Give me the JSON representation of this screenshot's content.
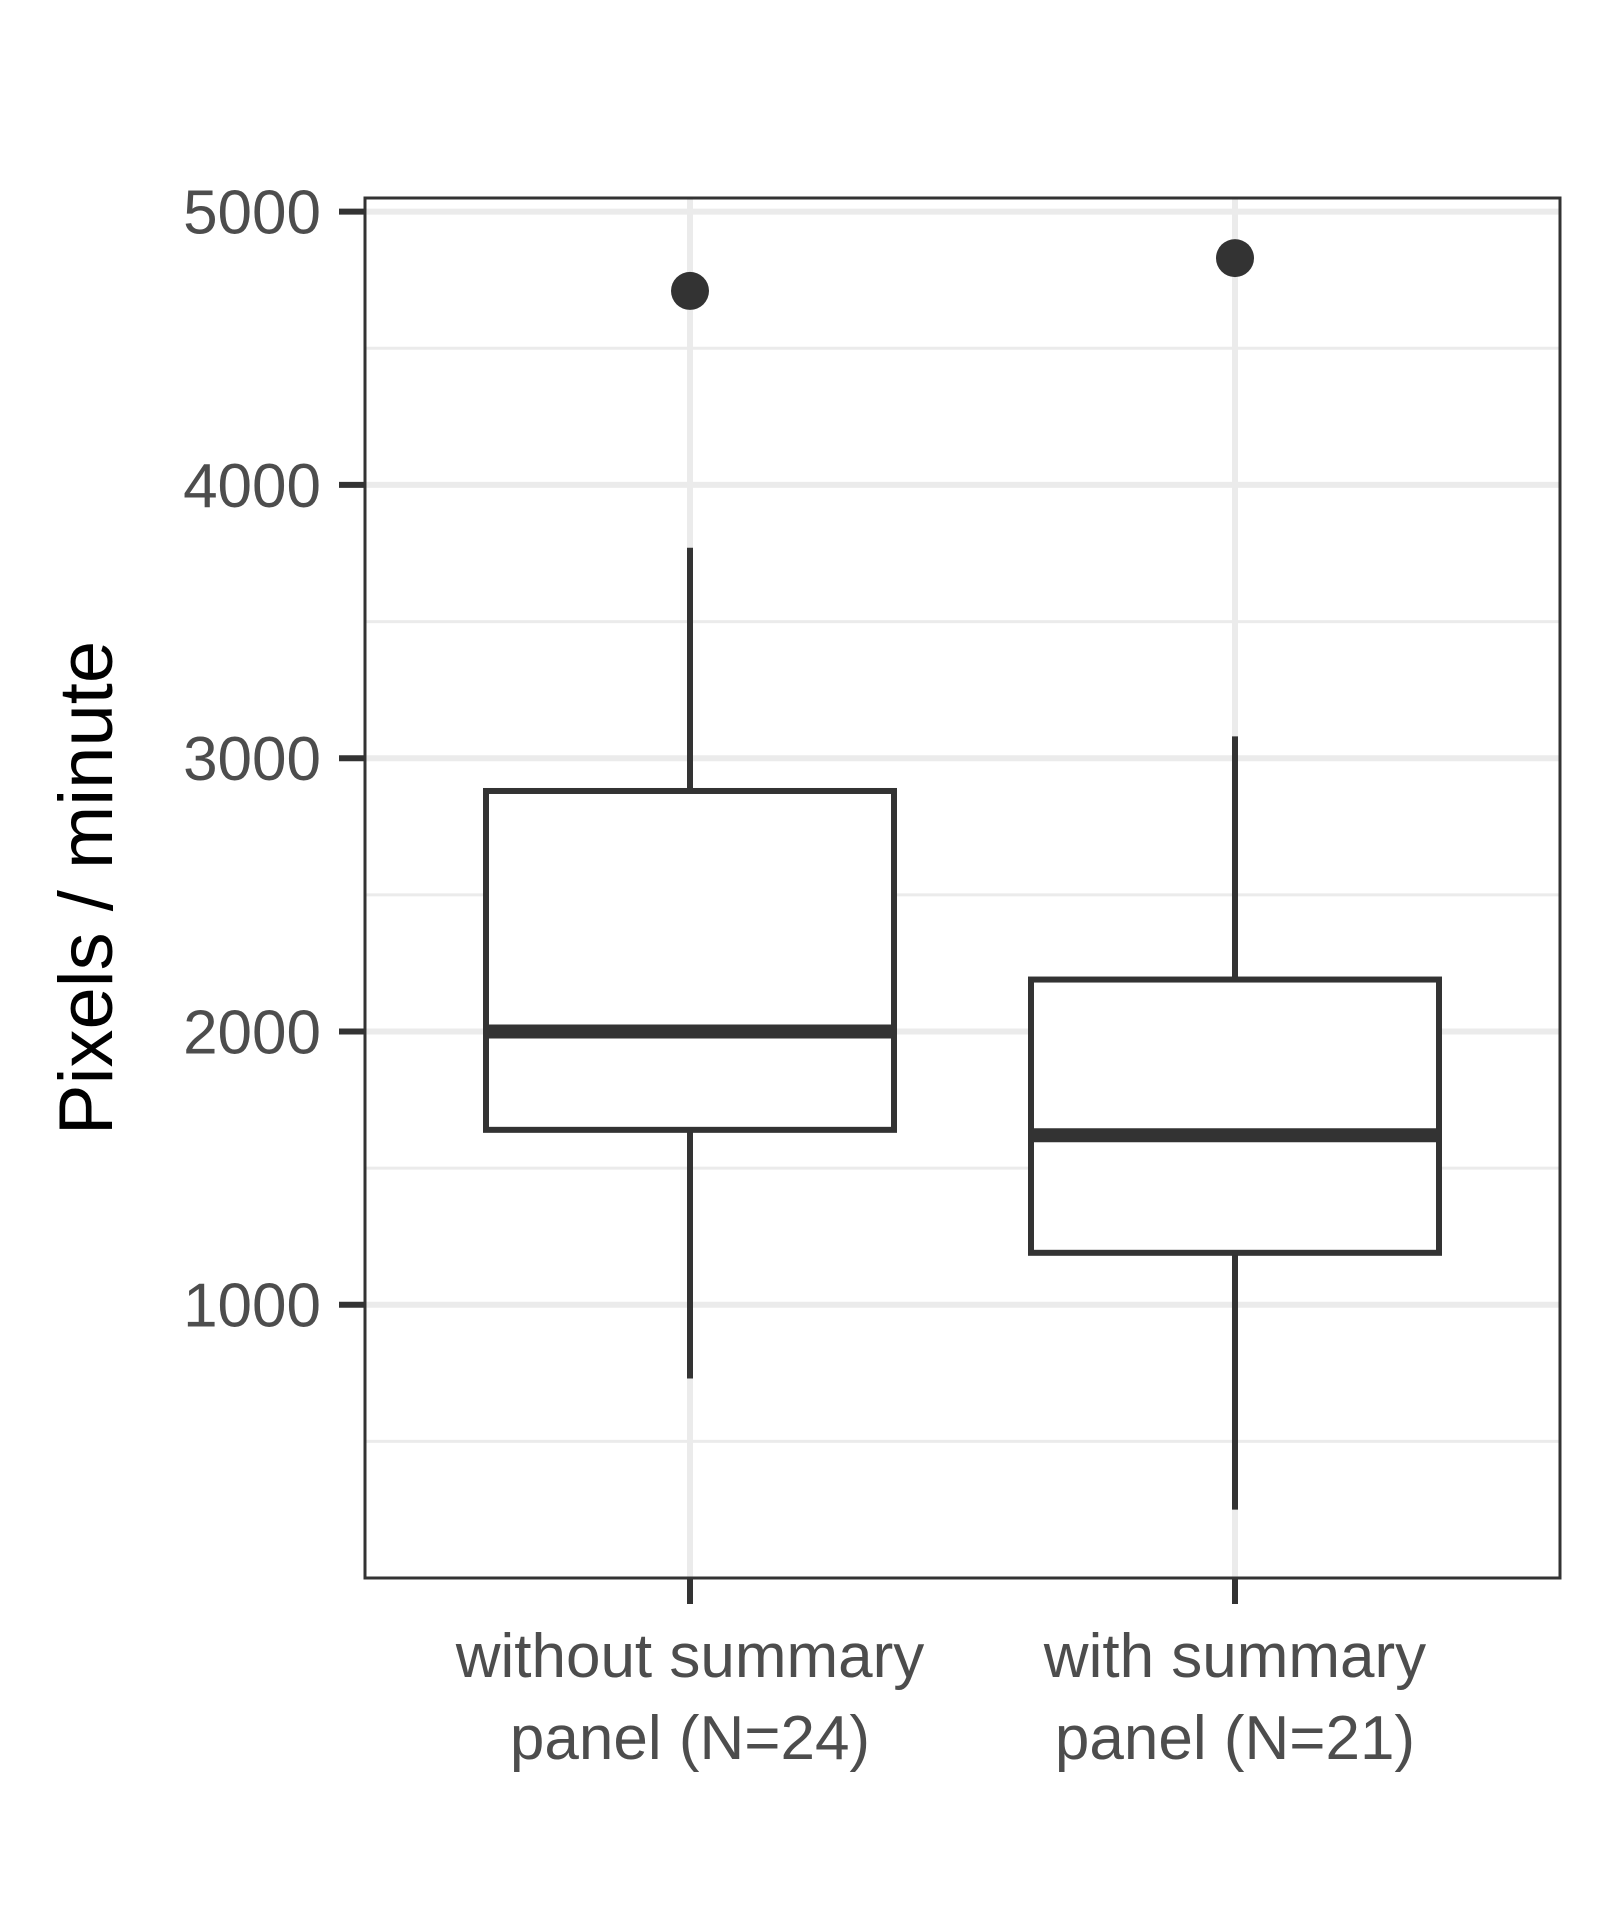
{
  "chart_data": {
    "type": "boxplot",
    "title": "",
    "xlabel": "",
    "ylabel": "Pixels / minute",
    "ylim": [
      0,
      5050
    ],
    "yticks": [
      1000,
      2000,
      3000,
      4000,
      5000
    ],
    "grid": true,
    "categories": [
      [
        "without summary",
        "panel (N=24)"
      ],
      [
        "with summary",
        "panel (N=21)"
      ]
    ],
    "boxes": [
      {
        "whisker_low": 730,
        "q1": 1640,
        "median": 2000,
        "q3": 2880,
        "whisker_high": 3770,
        "outliers": [
          4710
        ]
      },
      {
        "whisker_low": 250,
        "q1": 1190,
        "median": 1620,
        "q3": 2190,
        "whisker_high": 3080,
        "outliers": [
          4830
        ]
      }
    ],
    "colors": {
      "box": "#333333",
      "grid": "#ebebeb",
      "tick_text": "#4d4d4d"
    }
  }
}
